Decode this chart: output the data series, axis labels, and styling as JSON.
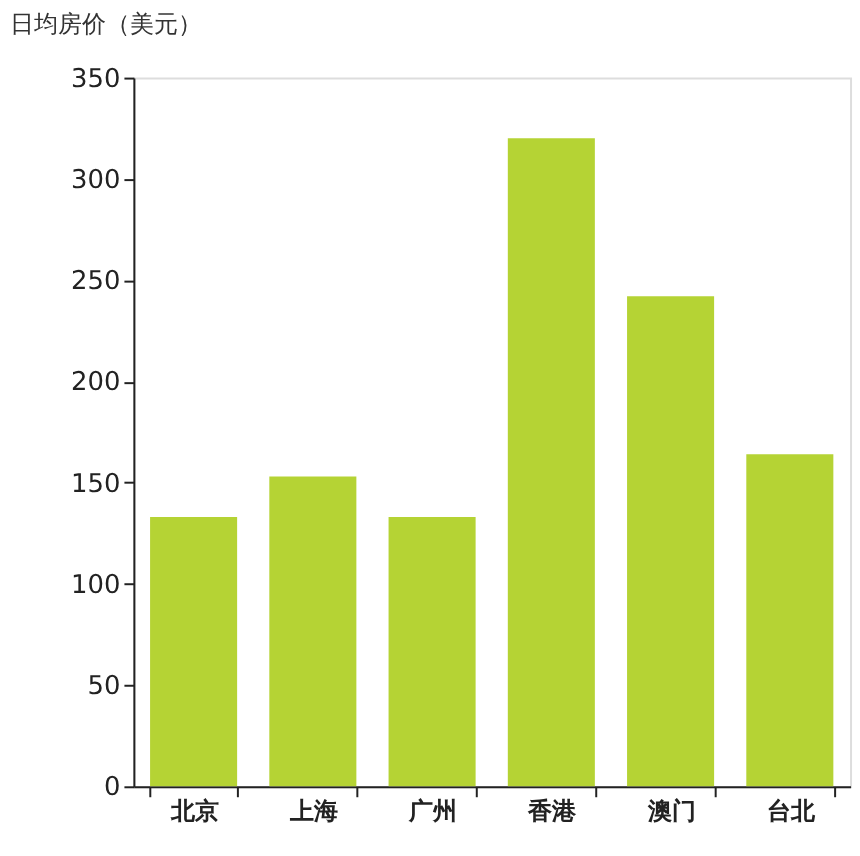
{
  "chart_data": {
    "type": "bar",
    "title": "日均房价（美元）",
    "categories": [
      "北京",
      "上海",
      "广州",
      "香港",
      "澳门",
      "台北"
    ],
    "values": [
      133,
      153,
      133,
      320,
      242,
      164
    ],
    "color": "#b5d334",
    "ylim": [
      0,
      350
    ],
    "yticks": [
      0,
      50,
      100,
      150,
      200,
      250,
      300,
      350
    ],
    "grid": false
  }
}
